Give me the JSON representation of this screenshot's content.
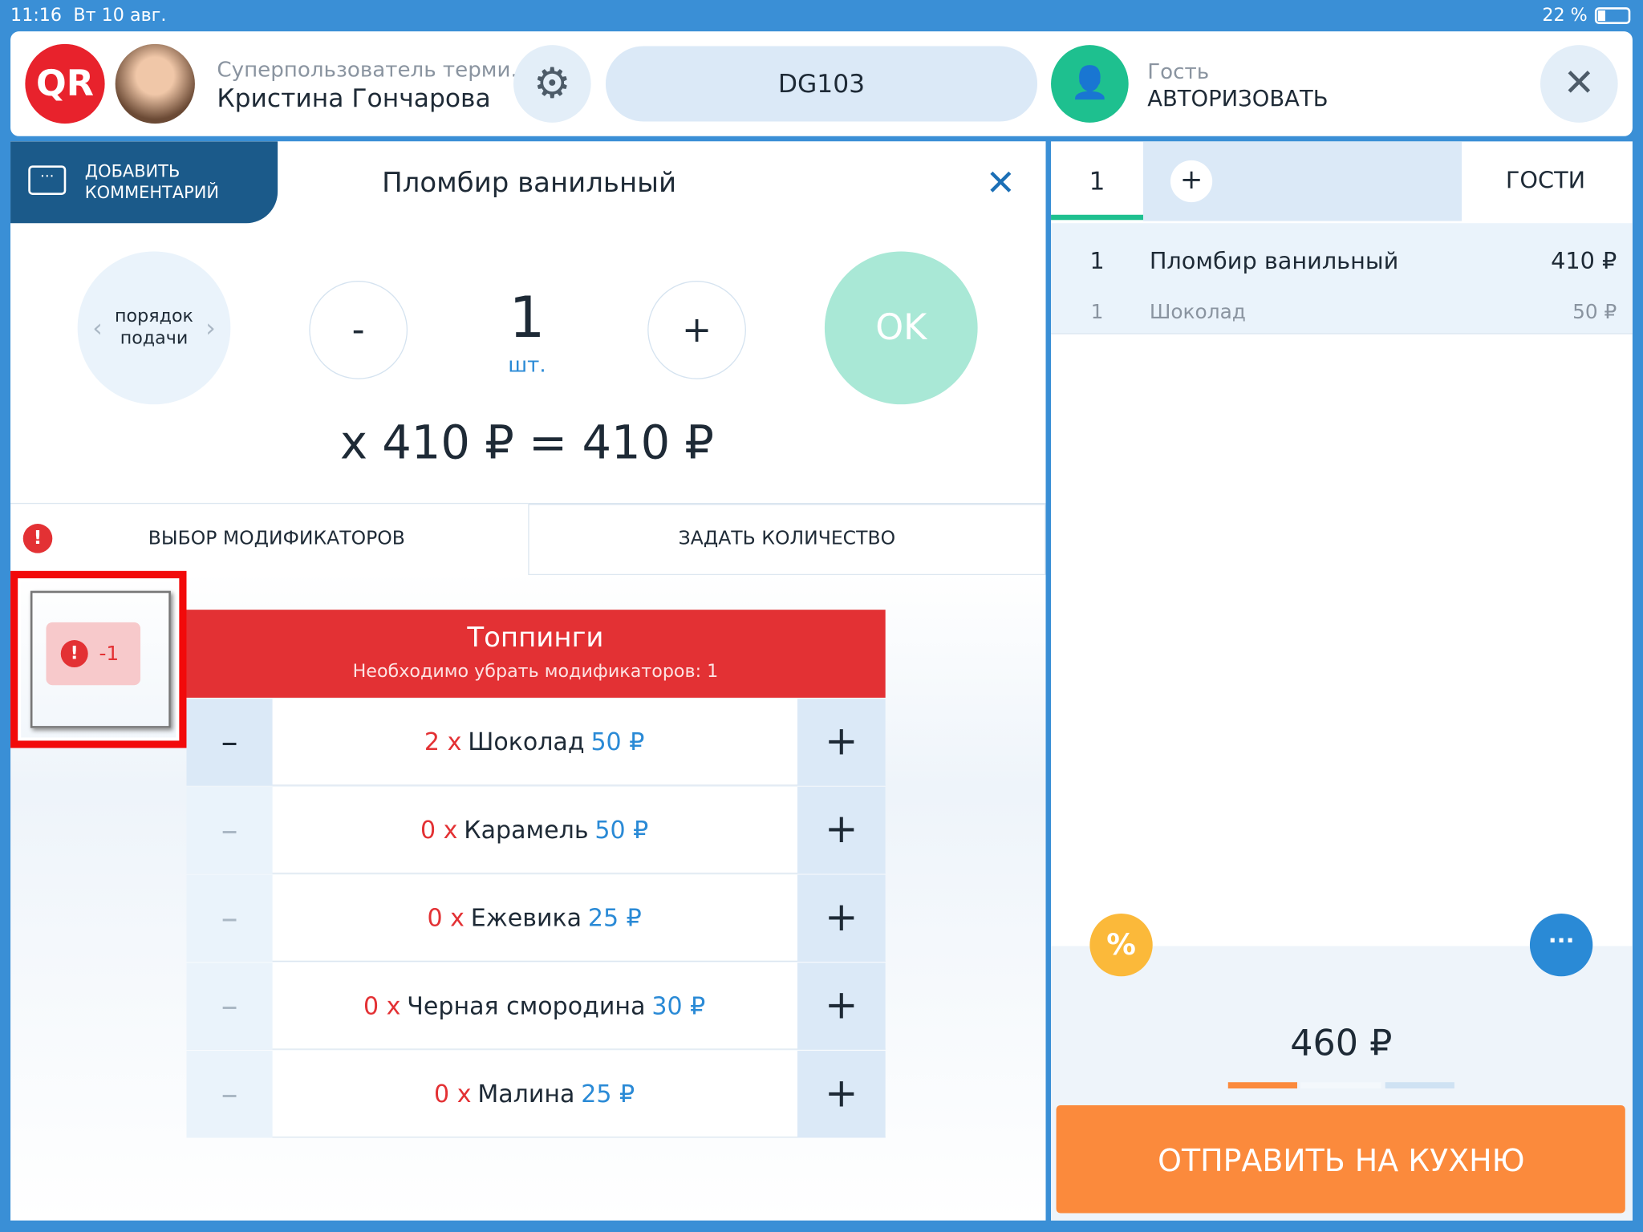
{
  "status": {
    "time": "11:16",
    "date": "Вт 10 авг.",
    "battery": "22 %"
  },
  "header": {
    "role": "Суперпользователь терми...",
    "user": "Кристина Гончарова",
    "table": "DG103",
    "guest_label": "Гость",
    "guest_action": "АВТОРИЗОВАТЬ"
  },
  "item": {
    "comment": "ДОБАВИТЬ КОММЕНТАРИЙ",
    "title": "Пломбир ванильный",
    "order_label": "порядок подачи",
    "minus": "-",
    "qty": "1",
    "unit": "шт.",
    "plus": "+",
    "ok": "OK",
    "total": "x 410 ₽ = 410 ₽"
  },
  "tabs": {
    "modifiers": "ВЫБОР МОДИФИКАТОРОВ",
    "quantity": "ЗАДАТЬ КОЛИЧЕСТВО"
  },
  "badge": "-1",
  "group": {
    "title": "Топпинги",
    "subtitle": "Необходимо убрать модификаторов: 1",
    "rows": [
      {
        "qty": "2 x",
        "name": "Шоколад",
        "price": "50 ₽"
      },
      {
        "qty": "0 x",
        "name": "Карамель",
        "price": "50 ₽"
      },
      {
        "qty": "0 x",
        "name": "Ежевика",
        "price": "25 ₽"
      },
      {
        "qty": "0 x",
        "name": "Черная смородина",
        "price": "30 ₽"
      },
      {
        "qty": "0 x",
        "name": "Малина",
        "price": "25 ₽"
      }
    ]
  },
  "order": {
    "guest_tab": "1",
    "guests": "ГОСТИ",
    "lines": [
      {
        "qty": "1",
        "name": "Пломбир ванильный",
        "price": "410 ₽"
      },
      {
        "qty": "1",
        "name": "Шоколад",
        "price": "50 ₽"
      }
    ],
    "sum": "460 ₽",
    "send": "ОТПРАВИТЬ НА КУХНЮ"
  }
}
